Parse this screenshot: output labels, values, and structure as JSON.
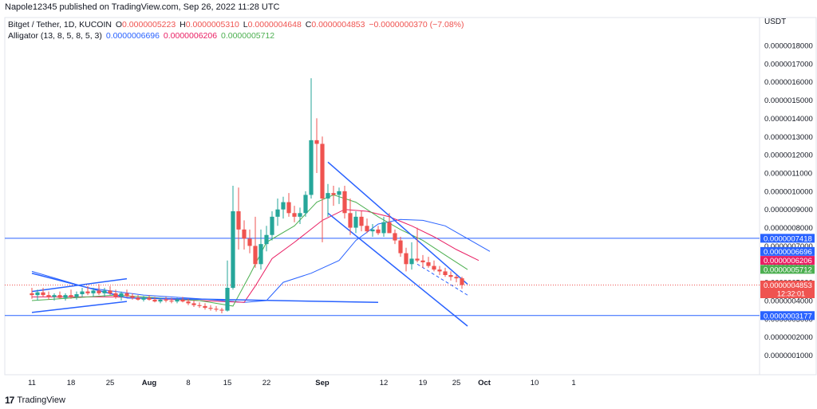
{
  "header": {
    "published": "Napole12345 published on TradingView.com, Sep 26, 2022 11:28 UTC"
  },
  "legend": {
    "symbol": "Bitget / Tether, 1D, KUCOIN",
    "o_label": "O",
    "o": "0.0000005223",
    "h_label": "H",
    "h": "0.0000005310",
    "l_label": "L",
    "l": "0.0000004648",
    "c_label": "C",
    "c": "0.0000004853",
    "change": "−0.0000000370 (−7.08%)",
    "alligator_label": "Alligator (13, 8, 5, 8, 5, 3)",
    "jaw": "0.0000006696",
    "teeth": "0.0000006206",
    "lips": "0.0000005712"
  },
  "footer": {
    "brand": "TradingView"
  },
  "colors": {
    "up": "#26a69a",
    "down": "#ef5350",
    "jaw": "#2962ff",
    "teeth": "#e91e63",
    "lips": "#4caf50",
    "hline": "#2962ff",
    "grid": "#f0f3fa"
  },
  "chart_data": {
    "type": "candlestick",
    "currency": "USDT",
    "ylim": [
      5e-08,
      1.8e-06
    ],
    "y_ticks": [
      "0.0000018000",
      "0.0000017000",
      "0.0000016000",
      "0.0000015000",
      "0.0000014000",
      "0.0000013000",
      "0.0000012000",
      "0.0000011000",
      "0.0000010000",
      "0.0000009000",
      "0.0000008000",
      "0.0000007000",
      "0.0000006000",
      "0.0000005000",
      "0.0000004000",
      "0.0000003000",
      "0.0000002000",
      "0.0000001000"
    ],
    "y_tick_values": [
      1.8e-06,
      1.7e-06,
      1.6e-06,
      1.5e-06,
      1.4e-06,
      1.3e-06,
      1.2e-06,
      1.1e-06,
      1e-06,
      9e-07,
      8e-07,
      7e-07,
      6e-07,
      5e-07,
      4e-07,
      3e-07,
      2e-07,
      1e-07
    ],
    "x_labels": [
      {
        "label": "11",
        "day": 0
      },
      {
        "label": "18",
        "day": 7
      },
      {
        "label": "25",
        "day": 14
      },
      {
        "label": "Aug",
        "day": 21
      },
      {
        "label": "8",
        "day": 28
      },
      {
        "label": "15",
        "day": 35
      },
      {
        "label": "22",
        "day": 42
      },
      {
        "label": "Sep",
        "day": 52
      },
      {
        "label": "12",
        "day": 63
      },
      {
        "label": "19",
        "day": 70
      },
      {
        "label": "25",
        "day": 76
      },
      {
        "label": "Oct",
        "day": 81
      },
      {
        "label": "10",
        "day": 90
      },
      {
        "label": "1",
        "day": 97
      }
    ],
    "candles": [
      [
        0,
        4.4e-07,
        4.7e-07,
        4.1e-07,
        4.3e-07
      ],
      [
        1,
        4.3e-07,
        4.6e-07,
        4e-07,
        4.45e-07
      ],
      [
        2,
        4.45e-07,
        4.7e-07,
        4.2e-07,
        4.3e-07
      ],
      [
        3,
        4.3e-07,
        4.5e-07,
        4.05e-07,
        4.2e-07
      ],
      [
        4,
        4.2e-07,
        4.4e-07,
        4e-07,
        4.3e-07
      ],
      [
        5,
        4.3e-07,
        4.5e-07,
        4.1e-07,
        4.15e-07
      ],
      [
        6,
        4.15e-07,
        4.4e-07,
        4e-07,
        4.3e-07
      ],
      [
        7,
        4.3e-07,
        4.6e-07,
        4.1e-07,
        4.2e-07
      ],
      [
        8,
        4.2e-07,
        4.5e-07,
        4.05e-07,
        4.35e-07
      ],
      [
        9,
        4.35e-07,
        4.7e-07,
        4.2e-07,
        4.5e-07
      ],
      [
        10,
        4.5e-07,
        4.8e-07,
        4.3e-07,
        4.4e-07
      ],
      [
        11,
        4.4e-07,
        4.7e-07,
        4.2e-07,
        4.55e-07
      ],
      [
        12,
        4.55e-07,
        4.9e-07,
        4.3e-07,
        4.4e-07
      ],
      [
        13,
        4.4e-07,
        4.7e-07,
        4.2e-07,
        4.55e-07
      ],
      [
        14,
        4.55e-07,
        4.8e-07,
        4.3e-07,
        4.4e-07
      ],
      [
        15,
        4.4e-07,
        4.6e-07,
        4.1e-07,
        4.2e-07
      ],
      [
        16,
        4.2e-07,
        4.5e-07,
        4e-07,
        4.4e-07
      ],
      [
        17,
        4.4e-07,
        4.6e-07,
        4.2e-07,
        4.25e-07
      ],
      [
        18,
        4.25e-07,
        4.4e-07,
        4.05e-07,
        4.15e-07
      ],
      [
        19,
        4.15e-07,
        4.3e-07,
        4e-07,
        4.05e-07
      ],
      [
        20,
        4.05e-07,
        4.25e-07,
        3.95e-07,
        4.15e-07
      ],
      [
        21,
        4.15e-07,
        4.3e-07,
        4e-07,
        4.05e-07
      ],
      [
        22,
        4.05e-07,
        4.2e-07,
        3.9e-07,
        3.95e-07
      ],
      [
        23,
        3.95e-07,
        4.15e-07,
        3.85e-07,
        4.05e-07
      ],
      [
        24,
        4.05e-07,
        4.2e-07,
        3.9e-07,
        4e-07
      ],
      [
        25,
        4e-07,
        4.15e-07,
        3.85e-07,
        3.95e-07
      ],
      [
        26,
        3.95e-07,
        4.15e-07,
        3.85e-07,
        4.05e-07
      ],
      [
        27,
        4.05e-07,
        4.2e-07,
        3.9e-07,
        3.95e-07
      ],
      [
        28,
        3.95e-07,
        4.1e-07,
        3.75e-07,
        3.85e-07
      ],
      [
        29,
        3.85e-07,
        4e-07,
        3.65e-07,
        3.75e-07
      ],
      [
        30,
        3.75e-07,
        3.9e-07,
        3.6e-07,
        3.7e-07
      ],
      [
        31,
        3.7e-07,
        3.85e-07,
        3.5e-07,
        3.6e-07
      ],
      [
        32,
        3.6e-07,
        3.75e-07,
        3.45e-07,
        3.55e-07
      ],
      [
        33,
        3.55e-07,
        3.7e-07,
        3.4e-07,
        3.5e-07
      ],
      [
        34,
        3.5e-07,
        3.6e-07,
        3.3e-07,
        3.45e-07
      ],
      [
        35,
        3.45e-07,
        6.2e-07,
        3.4e-07,
        4.7e-07
      ],
      [
        36,
        4.7e-07,
        1.03e-06,
        4.6e-07,
        8.9e-07
      ],
      [
        37,
        8.9e-07,
        1.02e-06,
        6.8e-07,
        7.9e-07
      ],
      [
        38,
        7.9e-07,
        8.4e-07,
        6.8e-07,
        7.4e-07
      ],
      [
        39,
        7.4e-07,
        7.9e-07,
        6.6e-07,
        7e-07
      ],
      [
        40,
        7e-07,
        8.6e-07,
        5.8e-07,
        6e-07
      ],
      [
        41,
        6e-07,
        7.9e-07,
        5.7e-07,
        7.1e-07
      ],
      [
        42,
        7.1e-07,
        8.1e-07,
        6.7e-07,
        7.6e-07
      ],
      [
        43,
        7.6e-07,
        8.9e-07,
        7.3e-07,
        8.6e-07
      ],
      [
        44,
        8.6e-07,
        9.6e-07,
        8.1e-07,
        9e-07
      ],
      [
        45,
        9e-07,
        9.7e-07,
        8.5e-07,
        9.4e-07
      ],
      [
        46,
        9.4e-07,
        9.9e-07,
        8.6e-07,
        8.8e-07
      ],
      [
        47,
        8.8e-07,
        9.2e-07,
        8.3e-07,
        8.6e-07
      ],
      [
        48,
        8.6e-07,
        9.1e-07,
        8.2e-07,
        8.8e-07
      ],
      [
        49,
        8.8e-07,
        1e-06,
        8.6e-07,
        9.8e-07
      ],
      [
        50,
        9.8e-07,
        1.62e-06,
        9.6e-07,
        1.28e-06
      ],
      [
        51,
        1.28e-06,
        1.4e-06,
        1.1e-06,
        1.26e-06
      ],
      [
        52,
        1.26e-06,
        1.3e-06,
        7.2e-07,
        9.6e-07
      ],
      [
        53,
        9.6e-07,
        1.04e-06,
        8.6e-07,
        9.9e-07
      ],
      [
        54,
        9.9e-07,
        1.03e-06,
        9.2e-07,
        9.8e-07
      ],
      [
        55,
        9.8e-07,
        1.02e-06,
        9.3e-07,
        1e-06
      ],
      [
        56,
        1e-06,
        1.03e-06,
        8.5e-07,
        8.8e-07
      ],
      [
        57,
        8.8e-07,
        9.6e-07,
        7.6e-07,
        8e-07
      ],
      [
        58,
        8e-07,
        8.9e-07,
        7.7e-07,
        8.6e-07
      ],
      [
        59,
        8.6e-07,
        8.9e-07,
        7.8e-07,
        8.1e-07
      ],
      [
        60,
        8.1e-07,
        8.5e-07,
        7.7e-07,
        7.8e-07
      ],
      [
        61,
        7.8e-07,
        8.2e-07,
        7.5e-07,
        7.9e-07
      ],
      [
        62,
        7.9e-07,
        8.1e-07,
        7.6e-07,
        7.7e-07
      ],
      [
        63,
        7.7e-07,
        8.6e-07,
        7.5e-07,
        8.3e-07
      ],
      [
        64,
        8.3e-07,
        8.8e-07,
        7.7e-07,
        7.7e-07
      ],
      [
        65,
        7.7e-07,
        7.9e-07,
        7.1e-07,
        7.3e-07
      ],
      [
        66,
        7.3e-07,
        7.5e-07,
        6.4e-07,
        6.6e-07
      ],
      [
        67,
        6.6e-07,
        6.9e-07,
        5.6e-07,
        6e-07
      ],
      [
        68,
        6e-07,
        7.2e-07,
        5.7e-07,
        6.3e-07
      ],
      [
        69,
        6.3e-07,
        8e-07,
        6.1e-07,
        6.2e-07
      ],
      [
        70,
        6.2e-07,
        6.5e-07,
        5.8e-07,
        6.1e-07
      ],
      [
        71,
        6.1e-07,
        6.4e-07,
        5.8e-07,
        5.9e-07
      ],
      [
        72,
        5.9e-07,
        6.2e-07,
        5.6e-07,
        5.7e-07
      ],
      [
        73,
        5.7e-07,
        5.9e-07,
        5.4e-07,
        5.6e-07
      ],
      [
        74,
        5.6e-07,
        5.8e-07,
        5.3e-07,
        5.4e-07
      ],
      [
        75,
        5.4e-07,
        5.6e-07,
        5.1e-07,
        5.3e-07
      ],
      [
        76,
        5.3e-07,
        5.4e-07,
        5e-07,
        5.22e-07
      ],
      [
        77,
        5.223e-07,
        5.31e-07,
        4.648e-07,
        4.853e-07
      ]
    ],
    "alligator": {
      "jaw": [
        [
          0,
          5.6e-07
        ],
        [
          10,
          4.7e-07
        ],
        [
          20,
          4.3e-07
        ],
        [
          30,
          4.1e-07
        ],
        [
          38,
          3.9e-07
        ],
        [
          42,
          4e-07
        ],
        [
          45,
          5e-07
        ],
        [
          50,
          5.5e-07
        ],
        [
          55,
          6.2e-07
        ],
        [
          58,
          7.3e-07
        ],
        [
          62,
          8.2e-07
        ],
        [
          66,
          8.45e-07
        ],
        [
          70,
          8.4e-07
        ],
        [
          74,
          8.1e-07
        ],
        [
          78,
          7.4e-07
        ],
        [
          82,
          6.7e-07
        ]
      ],
      "teeth": [
        [
          0,
          4.2e-07
        ],
        [
          15,
          4.2e-07
        ],
        [
          30,
          4e-07
        ],
        [
          38,
          3.9e-07
        ],
        [
          40,
          4.8e-07
        ],
        [
          43,
          6.3e-07
        ],
        [
          47,
          7.2e-07
        ],
        [
          52,
          8.4e-07
        ],
        [
          56,
          9e-07
        ],
        [
          60,
          8.9e-07
        ],
        [
          64,
          8.6e-07
        ],
        [
          68,
          8.1e-07
        ],
        [
          72,
          7.5e-07
        ],
        [
          76,
          6.8e-07
        ],
        [
          80,
          6.2e-07
        ]
      ],
      "lips": [
        [
          0,
          4e-07
        ],
        [
          15,
          4.3e-07
        ],
        [
          30,
          4e-07
        ],
        [
          36,
          3.7e-07
        ],
        [
          39,
          5.4e-07
        ],
        [
          42,
          7.2e-07
        ],
        [
          47,
          8.1e-07
        ],
        [
          51,
          9.4e-07
        ],
        [
          54,
          9.8e-07
        ],
        [
          58,
          9.4e-07
        ],
        [
          62,
          8.6e-07
        ],
        [
          66,
          7.9e-07
        ],
        [
          70,
          7.3e-07
        ],
        [
          74,
          6.5e-07
        ],
        [
          78,
          5.7e-07
        ]
      ]
    },
    "hlines": [
      {
        "value": 7.418e-07,
        "label": "0.0000007418",
        "color": "#2962ff"
      },
      {
        "value": 3.177e-07,
        "label": "0.0000003177",
        "color": "#2962ff"
      }
    ],
    "price_labels": [
      {
        "value": 7.418e-07,
        "label": "0.0000007418",
        "bg": "#2962ff",
        "fg": "#ffffff"
      },
      {
        "value": 6.696e-07,
        "label": "0.0000006696",
        "bg": "#2962ff",
        "fg": "#ffffff"
      },
      {
        "value": 6.206e-07,
        "label": "0.0000006206",
        "bg": "#e91e63",
        "fg": "#ffffff"
      },
      {
        "value": 5.712e-07,
        "label": "0.0000005712",
        "bg": "#4caf50",
        "fg": "#ffffff"
      },
      {
        "value": 4.853e-07,
        "label": "0.0000004853",
        "bg": "#ef5350",
        "fg": "#ffffff",
        "sub": "12:32:01"
      }
    ],
    "trendlines": [
      {
        "from": [
          0,
          5.5e-07
        ],
        "to": [
          17,
          4.15e-07
        ]
      },
      {
        "from": [
          17,
          4.15e-07
        ],
        "to": [
          62,
          3.9e-07
        ]
      },
      {
        "from": [
          0,
          3.35e-07
        ],
        "to": [
          17,
          3.95e-07
        ]
      },
      {
        "from": [
          0,
          4.5e-07
        ],
        "to": [
          17,
          5.2e-07
        ]
      },
      {
        "from": [
          53,
          1.16e-06
        ],
        "to": [
          78,
          4.9e-07
        ]
      },
      {
        "from": [
          53,
          8.8e-07
        ],
        "to": [
          78,
          2.6e-07
        ]
      },
      {
        "from": [
          69,
          6e-07
        ],
        "to": [
          78,
          4.3e-07
        ],
        "dashed": true
      }
    ]
  }
}
